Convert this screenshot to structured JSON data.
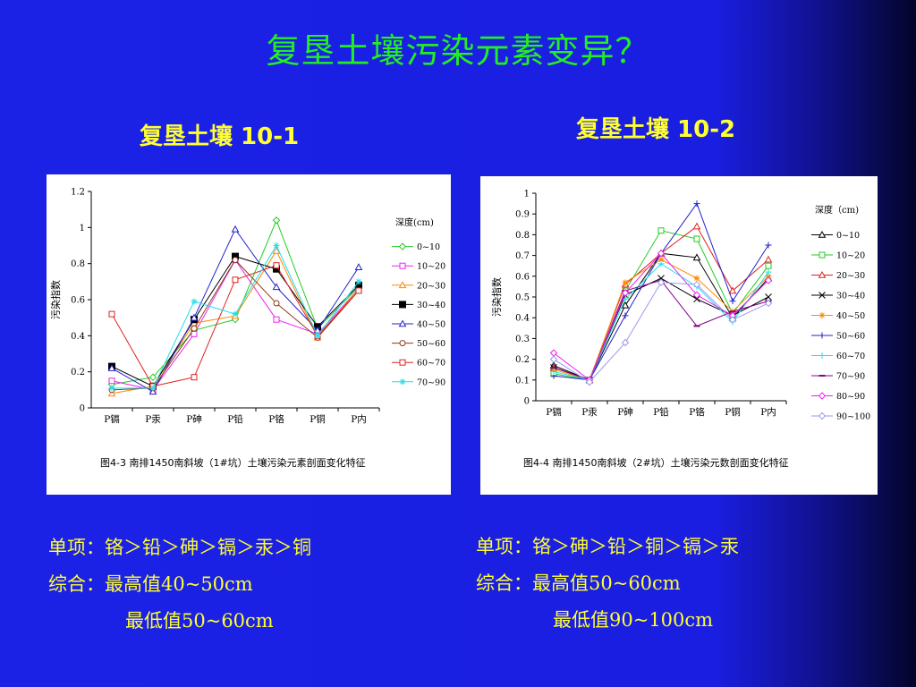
{
  "page": {
    "title": "复垦土壤污染元素变异？",
    "left_subtitle": "复垦土壤  10-1",
    "right_subtitle": "复垦土壤  10-2",
    "left_notes": [
      "单项：铬＞铅＞砷＞镉＞汞＞铜",
      "综合：最高值40~50cm",
      "最低值50~60cm"
    ],
    "right_notes": [
      "单项：铬＞砷＞铅＞铜＞镉＞汞",
      "综合：最高值50~60cm",
      "最低值90~100cm"
    ]
  },
  "chart_data": [
    {
      "type": "line",
      "caption": "图4-3  南排1450南斜坡（1#坑）土壤污染元素剖面变化特征",
      "ylabel": "污染指数",
      "legend_title": "深度(cm)",
      "legend_position": "right",
      "ylim": [
        0,
        1.2
      ],
      "yticks": [
        "0",
        "0.2",
        "0.4",
        "0.6",
        "0.8",
        "1",
        "1.2"
      ],
      "categories": [
        "P镉",
        "P汞",
        "P砷",
        "P铅",
        "P铬",
        "P铜",
        "P内"
      ],
      "series": [
        {
          "name": "0~10",
          "color": "#22cc22",
          "marker": "diamond",
          "values": [
            0.13,
            0.17,
            0.43,
            0.49,
            1.04,
            0.44,
            0.67
          ]
        },
        {
          "name": "10~20",
          "color": "#ee22ee",
          "marker": "square",
          "values": [
            0.15,
            0.1,
            0.41,
            0.82,
            0.49,
            0.41,
            0.66
          ]
        },
        {
          "name": "20~30",
          "color": "#ff8800",
          "marker": "triangle",
          "values": [
            0.08,
            0.12,
            0.47,
            0.51,
            0.87,
            0.39,
            0.66
          ]
        },
        {
          "name": "30~40",
          "color": "#000000",
          "marker": "square-filled",
          "values": [
            0.23,
            0.12,
            0.49,
            0.84,
            0.77,
            0.45,
            0.68
          ]
        },
        {
          "name": "40~50",
          "color": "#2222cc",
          "marker": "triangle",
          "values": [
            0.22,
            0.09,
            0.5,
            0.99,
            0.67,
            0.43,
            0.78
          ]
        },
        {
          "name": "50~60",
          "color": "#8b3a1a",
          "marker": "circle",
          "values": [
            0.1,
            0.11,
            0.44,
            0.82,
            0.58,
            0.39,
            0.65
          ]
        },
        {
          "name": "60~70",
          "color": "#dd2222",
          "marker": "square",
          "values": [
            0.52,
            0.12,
            0.17,
            0.71,
            0.79,
            0.4,
            0.65
          ]
        },
        {
          "name": "70~90",
          "color": "#22e0ee",
          "marker": "asterisk",
          "values": [
            0.11,
            0.11,
            0.59,
            0.52,
            0.9,
            0.4,
            0.7
          ]
        }
      ]
    },
    {
      "type": "line",
      "caption": "图4-4  南排1450南斜坡（2#坑）土壤污染元数剖面变化特征",
      "ylabel": "污染指数",
      "legend_title": "深度（cm)",
      "legend_position": "right",
      "ylim": [
        0,
        1
      ],
      "yticks": [
        "0",
        "0.1",
        "0.2",
        "0.3",
        "0.4",
        "0.5",
        "0.6",
        "0.7",
        "0.8",
        "0.9",
        "1"
      ],
      "categories": [
        "P镉",
        "P汞",
        "P砷",
        "P铅",
        "P铬",
        "P铜",
        "P内"
      ],
      "series": [
        {
          "name": "0~10",
          "color": "#000000",
          "marker": "triangle",
          "values": [
            0.17,
            0.1,
            0.46,
            0.71,
            0.69,
            0.4,
            0.59
          ]
        },
        {
          "name": "10~20",
          "color": "#22cc22",
          "marker": "square",
          "values": [
            0.13,
            0.1,
            0.53,
            0.82,
            0.78,
            0.42,
            0.65
          ]
        },
        {
          "name": "20~30",
          "color": "#dd2222",
          "marker": "triangle",
          "values": [
            0.16,
            0.1,
            0.56,
            0.71,
            0.84,
            0.53,
            0.68
          ]
        },
        {
          "name": "30~40",
          "color": "#000000",
          "marker": "x",
          "values": [
            0.16,
            0.1,
            0.51,
            0.59,
            0.49,
            0.41,
            0.5
          ]
        },
        {
          "name": "40~50",
          "color": "#ff8800",
          "marker": "asterisk",
          "values": [
            0.15,
            0.1,
            0.57,
            0.68,
            0.59,
            0.43,
            0.6
          ]
        },
        {
          "name": "50~60",
          "color": "#2222cc",
          "marker": "plus",
          "values": [
            0.12,
            0.1,
            0.41,
            0.71,
            0.95,
            0.48,
            0.75
          ]
        },
        {
          "name": "60~70",
          "color": "#22e0ee",
          "marker": "plus",
          "values": [
            0.14,
            0.1,
            0.49,
            0.66,
            0.55,
            0.38,
            0.62
          ]
        },
        {
          "name": "70~90",
          "color": "#880088",
          "marker": "dash",
          "values": [
            0.16,
            0.1,
            0.53,
            0.58,
            0.36,
            0.43,
            0.48
          ]
        },
        {
          "name": "80~90",
          "color": "#ee22ee",
          "marker": "diamond",
          "values": [
            0.23,
            0.1,
            0.52,
            0.71,
            0.51,
            0.41,
            0.58
          ]
        },
        {
          "name": "90~100",
          "color": "#9999ee",
          "marker": "diamond",
          "values": [
            0.2,
            0.09,
            0.28,
            0.57,
            0.56,
            0.39,
            0.47
          ]
        }
      ]
    }
  ]
}
